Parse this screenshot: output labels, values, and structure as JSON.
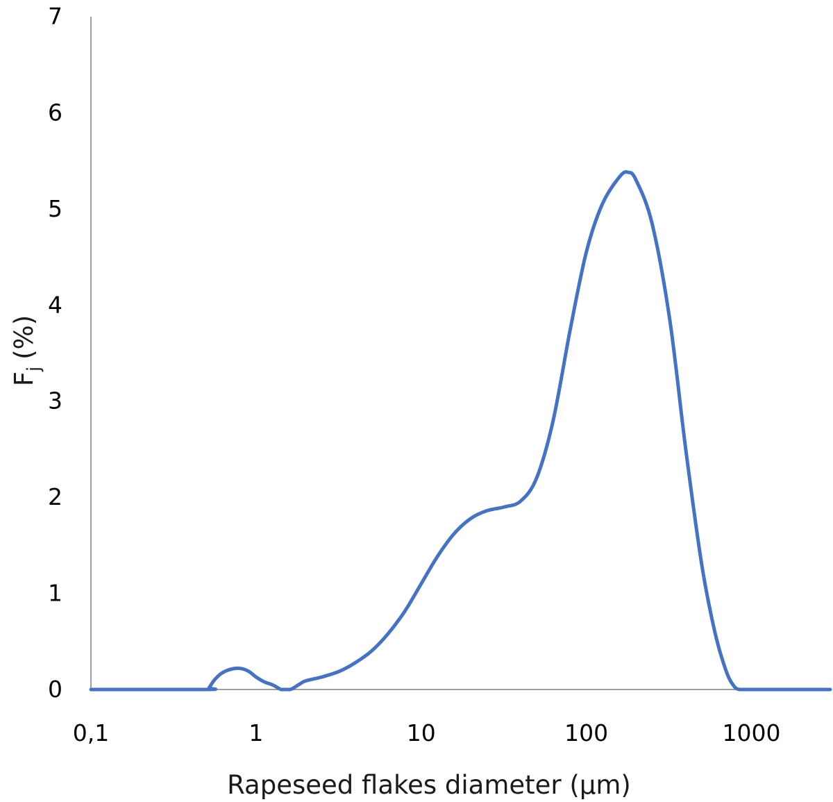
{
  "chart_data": {
    "type": "line",
    "title": "",
    "xlabel": "Rapeseed flakes diameter (µm)",
    "ylabel_main": "F",
    "ylabel_sub": "j",
    "ylabel_unit": "(%)",
    "x_scale": "log",
    "xlim": [
      0.1,
      3000
    ],
    "ylim": [
      0,
      7
    ],
    "x_ticks": [
      0.1,
      1,
      10,
      100,
      1000
    ],
    "x_tick_labels": [
      "0,1",
      "1",
      "10",
      "100",
      "1000"
    ],
    "y_ticks": [
      0,
      1,
      2,
      3,
      4,
      5,
      6,
      7
    ],
    "y_tick_labels": [
      "0",
      "1",
      "2",
      "3",
      "4",
      "5",
      "6",
      "7"
    ],
    "grid": false,
    "legend": "none",
    "series": [
      {
        "color": "#4472c4",
        "x": [
          0.1,
          0.5,
          0.52,
          0.56,
          0.62,
          0.7,
          0.8,
          0.9,
          1.0,
          1.12,
          1.25,
          1.35,
          1.42,
          1.6,
          1.7,
          1.85,
          2.0,
          2.5,
          3.2,
          4.0,
          5.0,
          6.3,
          8.0,
          10.0,
          12.5,
          15.8,
          20.0,
          25.0,
          32.0,
          40.0,
          50.0,
          63.0,
          80.0,
          100.0,
          125.0,
          160.0,
          180.0,
          200.0,
          250.0,
          320.0,
          400.0,
          500.0,
          600.0,
          700.0,
          780.0,
          850.0,
          1000.0,
          3000.0
        ],
        "y": [
          0.0,
          0.0,
          0.02,
          0.1,
          0.17,
          0.21,
          0.22,
          0.19,
          0.13,
          0.08,
          0.05,
          0.02,
          0.0,
          0.0,
          0.02,
          0.06,
          0.09,
          0.13,
          0.19,
          0.28,
          0.4,
          0.58,
          0.82,
          1.1,
          1.38,
          1.62,
          1.78,
          1.86,
          1.9,
          1.96,
          2.2,
          2.8,
          3.75,
          4.55,
          5.05,
          5.34,
          5.38,
          5.3,
          4.85,
          3.85,
          2.5,
          1.3,
          0.6,
          0.2,
          0.04,
          0.0,
          0.0,
          0.0
        ]
      }
    ]
  }
}
